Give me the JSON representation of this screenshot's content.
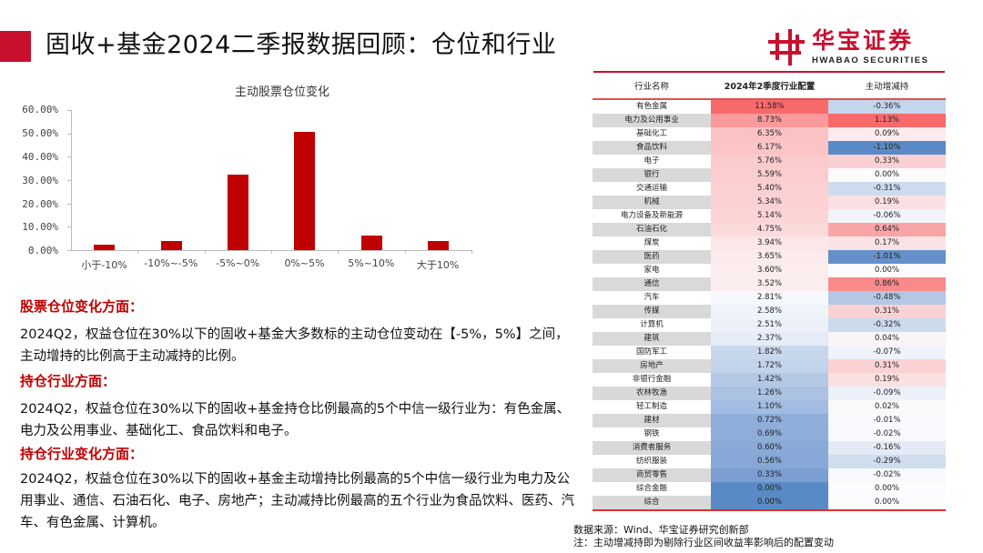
{
  "header": {
    "title": "固收+基金2024二季报数据回顾：仓位和行业",
    "logo_cn": "华宝证券",
    "logo_en": "HWABAO SECURITIES",
    "accent_color": "#c8102e"
  },
  "chart_data": {
    "type": "bar",
    "title": "主动股票仓位变化",
    "categories": [
      "小于-10%",
      "-10%~-5%",
      "-5%~0%",
      "0%~5%",
      "5%~10%",
      "大于10%"
    ],
    "values": [
      2.5,
      4.0,
      32.5,
      50.5,
      6.3,
      4.0
    ],
    "unit": "%",
    "xlabel": "",
    "ylabel": "",
    "ylim": [
      0,
      60
    ],
    "yticks": [
      "0.00%",
      "10.00%",
      "20.00%",
      "30.00%",
      "40.00%",
      "50.00%",
      "60.00%"
    ],
    "grid": false,
    "legend": null,
    "bar_color": "#c00000"
  },
  "text": {
    "h1": "股票仓位变化方面：",
    "p1": "2024Q2，权益仓位在30%以下的固收+基金大多数标的主动仓位变动在【-5%，5%】之间，主动增持的比例高于主动减持的比例。",
    "h2": "持仓行业方面：",
    "p2": "2024Q2，权益仓位在30%以下的固收+基金持仓比例最高的5个中信一级行业为：有色金属、电力及公用事业、基础化工、食品饮料和电子。",
    "h3": "持仓行业变化方面：",
    "p3": "2024Q2，权益仓位在30%以下的固收+基金主动增持比例最高的5个中信一级行业为电力及公用事业、通信、石油石化、电子、房地产；主动减持比例最高的五个行业为食品饮料、医药、汽车、有色金属、计算机。"
  },
  "table": {
    "headers": [
      "行业名称",
      "2024年2季度行业配置",
      "主动增减持"
    ],
    "rows": [
      {
        "name": "有色金属",
        "alloc": "11.58%",
        "chg": "-0.36%",
        "alloc_bg": "#f8696b",
        "chg_bg": "#c5d5ec"
      },
      {
        "name": "电力及公用事业",
        "alloc": "8.73%",
        "chg": "1.13%",
        "alloc_bg": "#fa9a9c",
        "chg_bg": "#f8696b"
      },
      {
        "name": "基础化工",
        "alloc": "6.35%",
        "chg": "0.09%",
        "alloc_bg": "#fbc2c4",
        "chg_bg": "#fcecee"
      },
      {
        "name": "食品饮料",
        "alloc": "6.17%",
        "chg": "-1.10%",
        "alloc_bg": "#fbc5c7",
        "chg_bg": "#5a8ac6"
      },
      {
        "name": "电子",
        "alloc": "5.76%",
        "chg": "0.33%",
        "alloc_bg": "#fbcbcd",
        "chg_bg": "#fbd0d2"
      },
      {
        "name": "银行",
        "alloc": "5.59%",
        "chg": "0.00%",
        "alloc_bg": "#fbcdcf",
        "chg_bg": "#fcfcff"
      },
      {
        "name": "交通运输",
        "alloc": "5.40%",
        "chg": "-0.31%",
        "alloc_bg": "#fbd0d2",
        "chg_bg": "#cddbef"
      },
      {
        "name": "机械",
        "alloc": "5.34%",
        "chg": "0.19%",
        "alloc_bg": "#fbd1d3",
        "chg_bg": "#fbe0e2"
      },
      {
        "name": "电力设备及新能源",
        "alloc": "5.14%",
        "chg": "-0.06%",
        "alloc_bg": "#fbd4d6",
        "chg_bg": "#f2f4fb"
      },
      {
        "name": "石油石化",
        "alloc": "4.75%",
        "chg": "0.64%",
        "alloc_bg": "#fbdadc",
        "chg_bg": "#f9a5a7"
      },
      {
        "name": "煤炭",
        "alloc": "3.94%",
        "chg": "0.17%",
        "alloc_bg": "#fbe6e8",
        "chg_bg": "#fbe2e4"
      },
      {
        "name": "医药",
        "alloc": "3.65%",
        "chg": "-1.01%",
        "alloc_bg": "#fbebed",
        "chg_bg": "#6590ca"
      },
      {
        "name": "家电",
        "alloc": "3.60%",
        "chg": "0.00%",
        "alloc_bg": "#fbeced",
        "chg_bg": "#fcfcff"
      },
      {
        "name": "通信",
        "alloc": "3.52%",
        "chg": "0.86%",
        "alloc_bg": "#fbedef",
        "chg_bg": "#f98a8c"
      },
      {
        "name": "汽车",
        "alloc": "2.81%",
        "chg": "-0.48%",
        "alloc_bg": "#f7f8fd",
        "chg_bg": "#b4c8e6"
      },
      {
        "name": "传媒",
        "alloc": "2.58%",
        "chg": "0.31%",
        "alloc_bg": "#eff3fa",
        "chg_bg": "#fbd2d4"
      },
      {
        "name": "计算机",
        "alloc": "2.51%",
        "chg": "-0.32%",
        "alloc_bg": "#ecf1f9",
        "chg_bg": "#ccdaee"
      },
      {
        "name": "建筑",
        "alloc": "2.37%",
        "chg": "0.04%",
        "alloc_bg": "#e6ecf7",
        "chg_bg": "#fbf4f6"
      },
      {
        "name": "国防军工",
        "alloc": "1.82%",
        "chg": "-0.07%",
        "alloc_bg": "#c9d7ed",
        "chg_bg": "#f0f3fa"
      },
      {
        "name": "房地产",
        "alloc": "1.72%",
        "chg": "0.31%",
        "alloc_bg": "#c3d3eb",
        "chg_bg": "#fbd2d4"
      },
      {
        "name": "非银行金融",
        "alloc": "1.42%",
        "chg": "0.19%",
        "alloc_bg": "#b4c8e6",
        "chg_bg": "#fbe0e2"
      },
      {
        "name": "农林牧渔",
        "alloc": "1.26%",
        "chg": "-0.09%",
        "alloc_bg": "#abc2e3",
        "chg_bg": "#ecf0f9"
      },
      {
        "name": "轻工制造",
        "alloc": "1.10%",
        "chg": "0.02%",
        "alloc_bg": "#a3bce1",
        "chg_bg": "#fbf8fa"
      },
      {
        "name": "建材",
        "alloc": "0.72%",
        "chg": "-0.01%",
        "alloc_bg": "#8faed9",
        "chg_bg": "#f9fafe"
      },
      {
        "name": "钢铁",
        "alloc": "0.69%",
        "chg": "-0.02%",
        "alloc_bg": "#8eadd9",
        "chg_bg": "#f7f9fd"
      },
      {
        "name": "消费者服务",
        "alloc": "0.60%",
        "chg": "-0.16%",
        "alloc_bg": "#89a9d7",
        "chg_bg": "#e3eaf6"
      },
      {
        "name": "纺织服装",
        "alloc": "0.56%",
        "chg": "-0.29%",
        "alloc_bg": "#87a8d6",
        "chg_bg": "#d0ddef"
      },
      {
        "name": "商贸零售",
        "alloc": "0.33%",
        "chg": "-0.02%",
        "alloc_bg": "#7b9fd2",
        "chg_bg": "#f7f9fd"
      },
      {
        "name": "综合金融",
        "alloc": "0.00%",
        "chg": "0.00%",
        "alloc_bg": "#5a8ac6",
        "chg_bg": "#fcfcff"
      },
      {
        "name": "综合",
        "alloc": "0.00%",
        "chg": "0.00%",
        "alloc_bg": "#5a8ac6",
        "chg_bg": "#fcfcff"
      }
    ]
  },
  "footer": {
    "source": "数据来源：Wind、华宝证券研究创新部",
    "note": "注：主动增减持即为剔除行业区间收益率影响后的配置变动"
  }
}
